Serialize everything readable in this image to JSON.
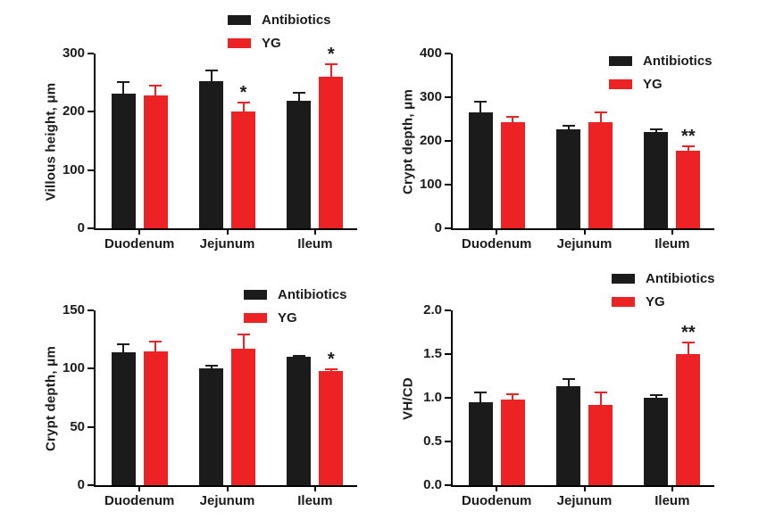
{
  "figure": {
    "background": "#ffffff",
    "axis_color": "#000000",
    "text_color": "#1b1b1b"
  },
  "legend": {
    "items": [
      {
        "label": "Antibiotics",
        "color": "#1b1b1b"
      },
      {
        "label": "YG",
        "color": "#ed2224"
      }
    ]
  },
  "chart_data": [
    {
      "type": "bar",
      "title": "",
      "ylabel": "Villous height, μm",
      "xlabel": "",
      "categories": [
        "Duodenum",
        "Jejunum",
        "Ileum"
      ],
      "ylim": [
        0,
        300
      ],
      "yticks": [
        "0",
        "100",
        "200",
        "300"
      ],
      "grid": false,
      "legend_position": "top-right",
      "series": [
        {
          "name": "Antibiotics",
          "color": "#1b1b1b",
          "values": [
            231,
            252,
            219
          ],
          "errors": [
            21,
            21,
            15
          ],
          "sig": [
            "",
            "",
            ""
          ]
        },
        {
          "name": "YG",
          "color": "#ed2224",
          "values": [
            228,
            200,
            260
          ],
          "errors": [
            19,
            18,
            23
          ],
          "sig": [
            "",
            "*",
            "*"
          ]
        }
      ]
    },
    {
      "type": "bar",
      "title": "",
      "ylabel": "Crypt depth, μm",
      "xlabel": "",
      "categories": [
        "Duodenum",
        "Jejunum",
        "Ileum"
      ],
      "ylim": [
        0,
        400
      ],
      "yticks": [
        "0",
        "100",
        "200",
        "300",
        "400"
      ],
      "grid": false,
      "legend_position": "top-right",
      "series": [
        {
          "name": "Antibiotics",
          "color": "#1b1b1b",
          "values": [
            265,
            226,
            220
          ],
          "errors": [
            27,
            11,
            8
          ],
          "sig": [
            "",
            "",
            ""
          ]
        },
        {
          "name": "YG",
          "color": "#ed2224",
          "values": [
            242,
            242,
            178
          ],
          "errors": [
            16,
            25,
            12
          ],
          "sig": [
            "",
            "",
            "**"
          ]
        }
      ]
    },
    {
      "type": "bar",
      "title": "",
      "ylabel": "Crypt depth, μm",
      "xlabel": "",
      "categories": [
        "Duodenum",
        "Jejunum",
        "Ileum"
      ],
      "ylim": [
        0,
        150
      ],
      "yticks": [
        "0",
        "50",
        "100",
        "150"
      ],
      "grid": false,
      "legend_position": "top-right",
      "series": [
        {
          "name": "Antibiotics",
          "color": "#1b1b1b",
          "values": [
            114,
            100,
            110
          ],
          "errors": [
            8,
            3,
            2
          ],
          "sig": [
            "",
            "",
            ""
          ]
        },
        {
          "name": "YG",
          "color": "#ed2224",
          "values": [
            115,
            117,
            98
          ],
          "errors": [
            9,
            13,
            2
          ],
          "sig": [
            "",
            "",
            "*"
          ]
        }
      ]
    },
    {
      "type": "bar",
      "title": "",
      "ylabel": "VH/CD",
      "xlabel": "",
      "categories": [
        "Duodenum",
        "Jejunum",
        "Ileum"
      ],
      "ylim": [
        0,
        2.0
      ],
      "yticks": [
        "0.0",
        "0.5",
        "1.0",
        "1.5",
        "2.0"
      ],
      "grid": false,
      "legend_position": "top-right",
      "series": [
        {
          "name": "Antibiotics",
          "color": "#1b1b1b",
          "values": [
            0.95,
            1.13,
            1.0
          ],
          "errors": [
            0.12,
            0.09,
            0.04
          ],
          "sig": [
            "",
            "",
            ""
          ]
        },
        {
          "name": "YG",
          "color": "#ed2224",
          "values": [
            0.98,
            0.92,
            1.5
          ],
          "errors": [
            0.07,
            0.15,
            0.14
          ],
          "sig": [
            "",
            "",
            "**"
          ]
        }
      ]
    }
  ]
}
